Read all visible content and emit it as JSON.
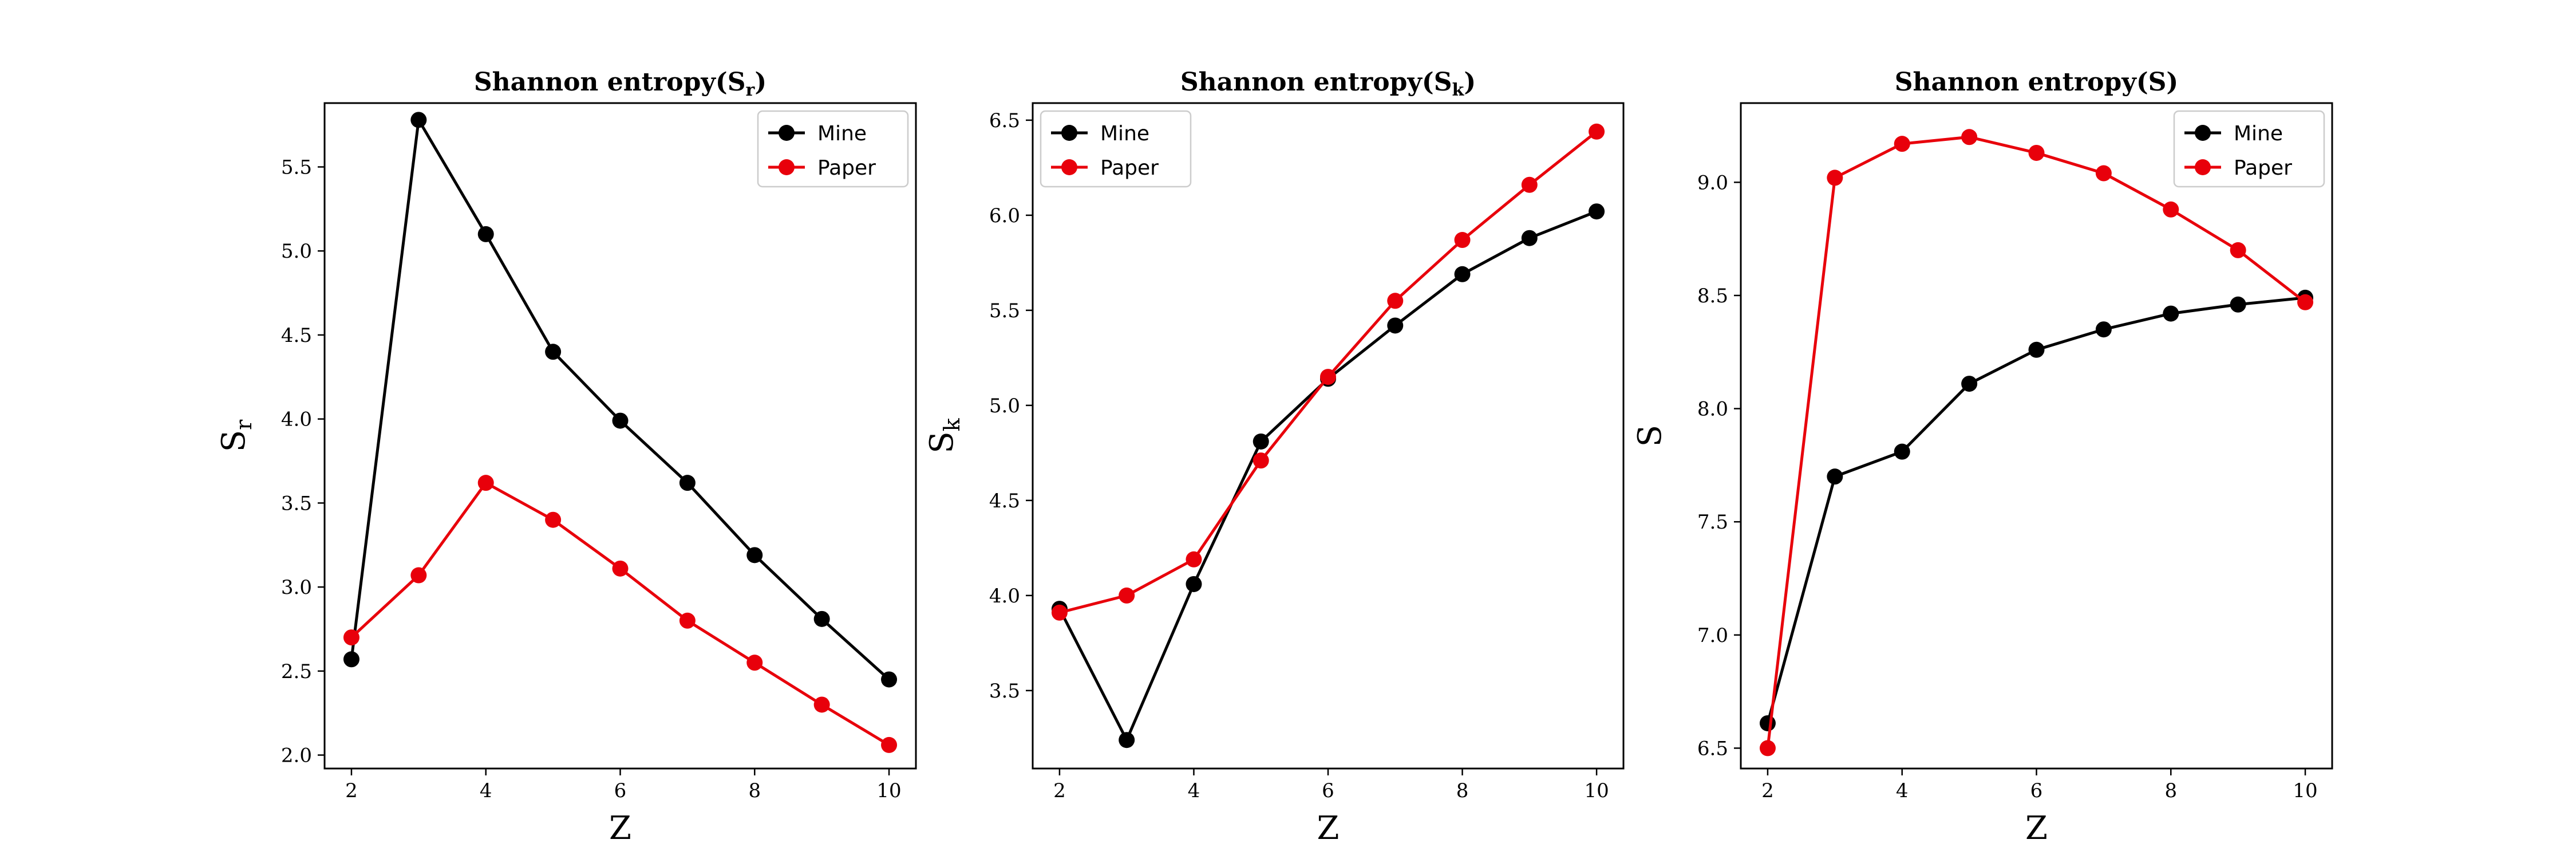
{
  "colors": {
    "mine": "#000000",
    "paper": "#e8000b"
  },
  "chart_data": [
    {
      "type": "line",
      "title": "Shannon entropy(S",
      "title_sub": "r",
      "xlabel": "Z",
      "ylabel": "S",
      "ylabel_sub": "r",
      "x": [
        2,
        3,
        4,
        5,
        6,
        7,
        8,
        9,
        10
      ],
      "xlim": [
        1.6,
        10.4
      ],
      "ylim": [
        1.92,
        5.88
      ],
      "xticks": [
        2,
        4,
        6,
        8,
        10
      ],
      "yticks": [
        "2.0",
        "2.5",
        "3.0",
        "3.5",
        "4.0",
        "4.5",
        "5.0",
        "5.5"
      ],
      "legend_loc": "top-right",
      "series": [
        {
          "name": "Mine",
          "color": "#000000",
          "values": [
            2.57,
            5.78,
            5.1,
            4.4,
            3.99,
            3.62,
            3.19,
            2.81,
            2.45
          ]
        },
        {
          "name": "Paper",
          "color": "#e8000b",
          "values": [
            2.7,
            3.07,
            3.62,
            3.4,
            3.11,
            2.8,
            2.55,
            2.3,
            2.06
          ]
        }
      ]
    },
    {
      "type": "line",
      "title": "Shannon entropy(S",
      "title_sub": "k",
      "xlabel": "Z",
      "ylabel": "S",
      "ylabel_sub": "k",
      "x": [
        2,
        3,
        4,
        5,
        6,
        7,
        8,
        9,
        10
      ],
      "xlim": [
        1.6,
        10.4
      ],
      "ylim": [
        3.09,
        6.59
      ],
      "xticks": [
        2,
        4,
        6,
        8,
        10
      ],
      "yticks": [
        "3.5",
        "4.0",
        "4.5",
        "5.0",
        "5.5",
        "6.0",
        "6.5"
      ],
      "legend_loc": "top-left",
      "series": [
        {
          "name": "Mine",
          "color": "#000000",
          "values": [
            3.93,
            3.24,
            4.06,
            4.81,
            5.14,
            5.42,
            5.69,
            5.88,
            6.02
          ]
        },
        {
          "name": "Paper",
          "color": "#e8000b",
          "values": [
            3.91,
            4.0,
            4.19,
            4.71,
            5.15,
            5.55,
            5.87,
            6.16,
            6.44
          ]
        }
      ]
    },
    {
      "type": "line",
      "title": "Shannon entropy(S)",
      "title_sub": "",
      "xlabel": "Z",
      "ylabel": "S",
      "ylabel_sub": "",
      "x": [
        2,
        3,
        4,
        5,
        6,
        7,
        8,
        9,
        10
      ],
      "xlim": [
        1.6,
        10.4
      ],
      "ylim": [
        6.41,
        9.35
      ],
      "xticks": [
        2,
        4,
        6,
        8,
        10
      ],
      "yticks": [
        "6.5",
        "7.0",
        "7.5",
        "8.0",
        "8.5",
        "9.0"
      ],
      "legend_loc": "top-right",
      "series": [
        {
          "name": "Mine",
          "color": "#000000",
          "values": [
            6.61,
            7.7,
            7.81,
            8.11,
            8.26,
            8.35,
            8.42,
            8.46,
            8.49
          ]
        },
        {
          "name": "Paper",
          "color": "#e8000b",
          "values": [
            6.5,
            9.02,
            9.17,
            9.2,
            9.13,
            9.04,
            8.88,
            8.7,
            8.47
          ]
        }
      ]
    }
  ]
}
